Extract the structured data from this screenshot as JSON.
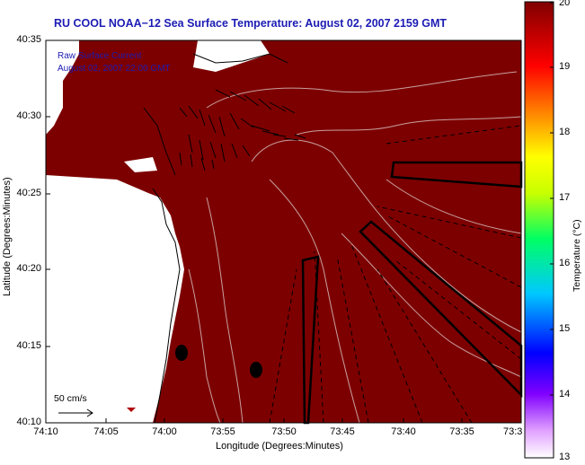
{
  "title": "RU COOL  NOAA−12  Sea Surface Temperature:  August 02, 2007 2159 GMT",
  "overlay": {
    "line1": "Raw Surface Current",
    "line2": "August 02, 2007 22:00 GMT"
  },
  "axes": {
    "xlabel": "Longitude (Degrees:Minutes)",
    "ylabel": "Latitude (Degrees:Minutes)",
    "lat_ticks": [
      "40:35",
      "40:30",
      "40:25",
      "40:20",
      "40:15",
      "40:10"
    ],
    "lon_ticks": [
      "74:10",
      "74:05",
      "74:00",
      "73:55",
      "73:50",
      "73:45",
      "73:40",
      "73:35",
      "73:3"
    ]
  },
  "colorbar": {
    "label": "Temperature (°C)",
    "ticks": [
      "20",
      "19",
      "18",
      "17",
      "16",
      "15",
      "14",
      "13"
    ],
    "min": 13,
    "max": 20
  },
  "scale": {
    "label": "50 cm/s"
  },
  "colors": {
    "sst_fill": "#7d0000",
    "land": "#ffffff",
    "contour": "#c8a0a0",
    "title_text": "#1c1cb4"
  }
}
